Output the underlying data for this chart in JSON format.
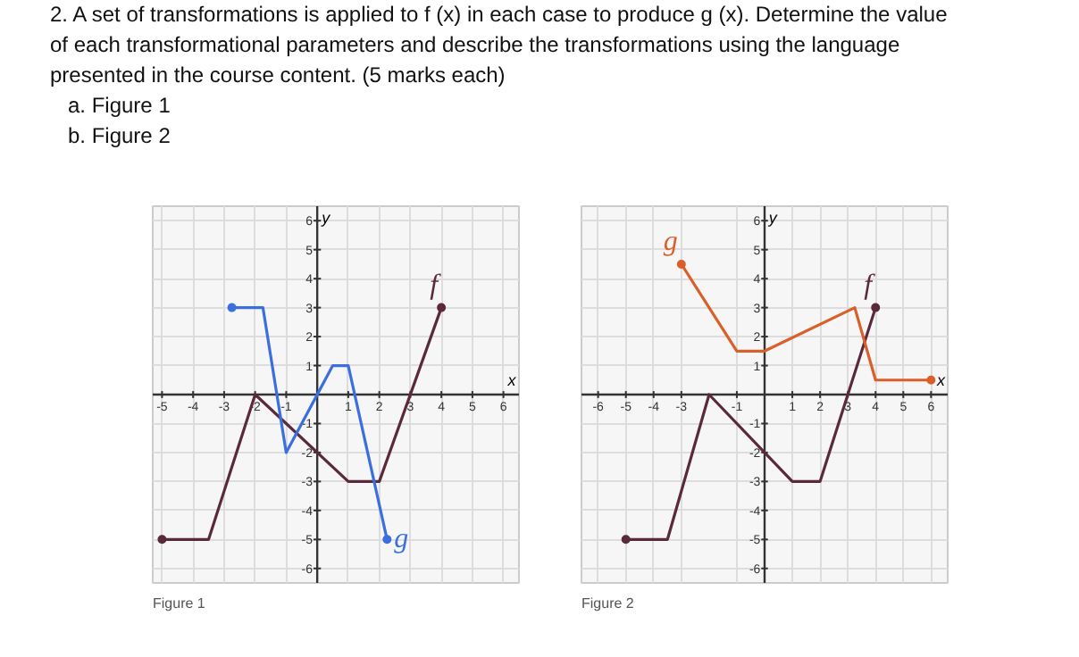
{
  "chart_data": [
    {
      "type": "line",
      "annotations": [
        "2. A set of transformations is applied to f (x) in each case to produce g (x). Determine the value of each transformational parameters and describe the transformations using the language presented in the course content. (5 marks each)",
        "a. Figure 1",
        "b. Figure 2",
        "Figure 1"
      ],
      "xlabel": "x",
      "ylabel": "y",
      "xlim": [
        -5.3,
        6.5
      ],
      "ylim": [
        -6.5,
        6.5
      ],
      "xticks": [
        -5,
        -4,
        -3,
        -2,
        -1,
        1,
        2,
        3,
        4,
        5,
        6
      ],
      "yticks": [
        -6,
        -5,
        -4,
        -3,
        -2,
        -1,
        1,
        2,
        3,
        4,
        5,
        6
      ],
      "grid": true,
      "series": [
        {
          "name": "f",
          "color": "#5a2a3a",
          "x": [
            -5,
            -3.5,
            -2,
            1,
            2,
            4
          ],
          "values": [
            -5,
            -5,
            0,
            -3,
            -3,
            3
          ]
        },
        {
          "name": "g",
          "color": "#3b6fe0",
          "x": [
            -2.75,
            -1.75,
            -1,
            0.5,
            1,
            2.25
          ],
          "values": [
            3,
            3,
            -2,
            1,
            1,
            -5
          ]
        },
        {
          "type": "scatter",
          "color": "#5a2a3a",
          "x": [
            -5,
            4
          ],
          "values": [
            -5,
            3
          ]
        },
        {
          "type": "scatter",
          "color": "#3b6fe0",
          "x": [
            -2.75,
            2.25
          ],
          "values": [
            3,
            -5
          ]
        }
      ]
    },
    {
      "type": "line",
      "annotations": [
        "Figure 2"
      ],
      "xlabel": "x",
      "ylabel": "y",
      "xlim": [
        -6.6,
        6.6
      ],
      "ylim": [
        -6.5,
        6.5
      ],
      "xticks": [
        -6,
        -5,
        -4,
        -3,
        -1,
        1,
        2,
        3,
        4,
        5,
        6
      ],
      "yticks": [
        -6,
        -5,
        -4,
        -3,
        -2,
        -1,
        1,
        2,
        3,
        4,
        5,
        6
      ],
      "grid": true,
      "series": [
        {
          "name": "f",
          "color": "#5a2a3a",
          "x": [
            -5,
            -3.5,
            -2,
            1,
            2,
            4
          ],
          "values": [
            -5,
            -5,
            0,
            -3,
            -3,
            3
          ]
        },
        {
          "name": "g",
          "color": "#d9602a",
          "x": [
            -3,
            -1,
            0,
            3.25,
            4,
            6
          ],
          "values": [
            4.5,
            1.5,
            1.5,
            3,
            0.5,
            0.5
          ]
        },
        {
          "type": "scatter",
          "color": "#5a2a3a",
          "x": [
            -5,
            4
          ],
          "values": [
            -5,
            3
          ]
        },
        {
          "type": "scatter",
          "color": "#d9602a",
          "x": [
            -3,
            6
          ],
          "values": [
            4.5,
            0.5
          ]
        }
      ]
    }
  ]
}
